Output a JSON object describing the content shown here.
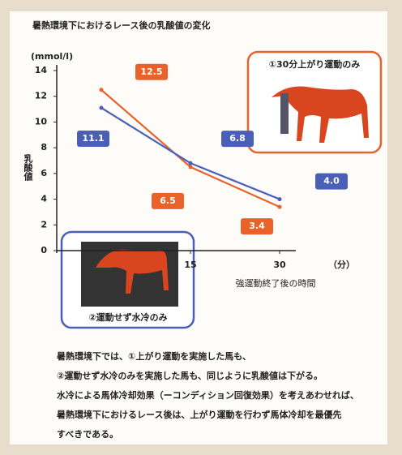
{
  "chart_data": {
    "type": "line",
    "title": "暑熱環境下におけるレース後の乳酸値の変化",
    "y_unit": "(mmol/l)",
    "ylabel": "乳酸値",
    "xlabel": "強運動終了後の時間",
    "x_unit": "（分）",
    "x": [
      0,
      15,
      30
    ],
    "xlim": [
      -7.5,
      33
    ],
    "xticks": [
      15,
      30
    ],
    "ylim": [
      0,
      14
    ],
    "yticks": [
      0,
      2,
      4,
      6,
      8,
      10,
      12,
      14
    ],
    "series": [
      {
        "name": "①30分上がり運動のみ",
        "color": "#e8622a",
        "values": [
          12.5,
          6.5,
          3.4
        ],
        "value_labels": [
          "12.5",
          "6.5",
          "3.4"
        ]
      },
      {
        "name": "②運動せず水冷のみ",
        "color": "#4a5fb8",
        "values": [
          11.1,
          6.8,
          4
        ],
        "value_labels": [
          "11.1",
          "6.8",
          "4.0"
        ]
      }
    ],
    "notes": [
      "暑熱環境下では、①上がり運動を実施した馬も、",
      "②運動せず水冷のみを実施した馬も、同じように乳酸値は下がる。",
      "水冷による馬体冷却効果（ーコンディション回復効果）を考えあわせれば、",
      "暑熱環境下におけるレース後は、上がり運動を行わず馬体冷却を最優先",
      "すべきである。"
    ]
  }
}
